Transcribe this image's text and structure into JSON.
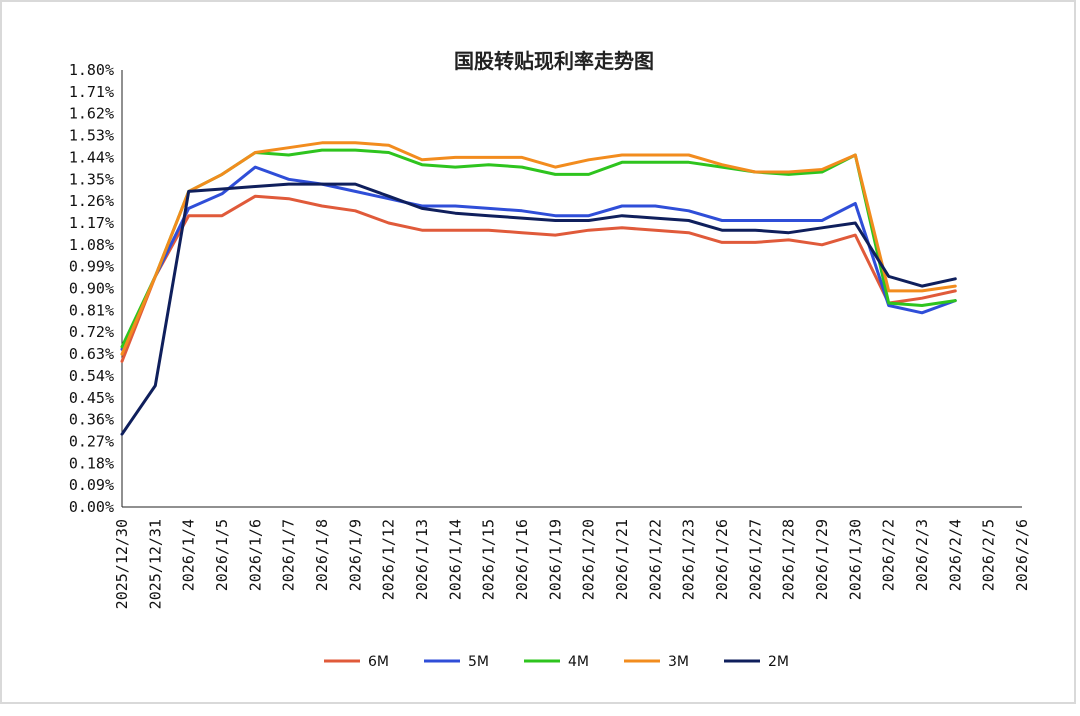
{
  "chart_data": {
    "type": "line",
    "title": "国股转贴现利率走势图",
    "xlabel": "",
    "ylabel": "",
    "ylim": [
      0,
      1.8
    ],
    "y_ticks": [
      "0.00%",
      "0.09%",
      "0.18%",
      "0.27%",
      "0.36%",
      "0.45%",
      "0.54%",
      "0.63%",
      "0.72%",
      "0.81%",
      "0.90%",
      "0.99%",
      "1.08%",
      "1.17%",
      "1.26%",
      "1.35%",
      "1.44%",
      "1.53%",
      "1.62%",
      "1.71%",
      "1.80%"
    ],
    "categories": [
      "2025/12/30",
      "2025/12/31",
      "2026/1/4",
      "2026/1/5",
      "2026/1/6",
      "2026/1/7",
      "2026/1/8",
      "2026/1/9",
      "2026/1/12",
      "2026/1/13",
      "2026/1/14",
      "2026/1/15",
      "2026/1/16",
      "2026/1/19",
      "2026/1/20",
      "2026/1/21",
      "2026/1/22",
      "2026/1/23",
      "2026/1/26",
      "2026/1/27",
      "2026/1/28",
      "2026/1/29",
      "2026/1/30",
      "2026/2/2",
      "2026/2/3",
      "2026/2/4",
      "2026/2/5",
      "2026/2/6"
    ],
    "grid": false,
    "legend_position": "bottom",
    "series": [
      {
        "name": "6M",
        "color": "#e05a3a",
        "values": [
          0.6,
          0.95,
          1.2,
          1.2,
          1.28,
          1.27,
          1.24,
          1.22,
          1.17,
          1.14,
          1.14,
          1.14,
          1.13,
          1.12,
          1.14,
          1.15,
          1.14,
          1.13,
          1.09,
          1.09,
          1.1,
          1.08,
          1.12,
          0.84,
          0.86,
          0.89,
          null,
          null
        ]
      },
      {
        "name": "5M",
        "color": "#2f4ed8",
        "values": [
          0.65,
          0.95,
          1.23,
          1.29,
          1.4,
          1.35,
          1.33,
          1.3,
          1.27,
          1.24,
          1.24,
          1.23,
          1.22,
          1.2,
          1.2,
          1.24,
          1.24,
          1.22,
          1.18,
          1.18,
          1.18,
          1.18,
          1.25,
          0.83,
          0.8,
          0.85,
          null,
          null
        ]
      },
      {
        "name": "4M",
        "color": "#2ec41e",
        "values": [
          0.66,
          0.95,
          1.3,
          1.37,
          1.46,
          1.45,
          1.47,
          1.47,
          1.46,
          1.41,
          1.4,
          1.41,
          1.4,
          1.37,
          1.37,
          1.42,
          1.42,
          1.42,
          1.4,
          1.38,
          1.37,
          1.38,
          1.45,
          0.84,
          0.83,
          0.85,
          null,
          null
        ]
      },
      {
        "name": "3M",
        "color": "#f28c1e",
        "values": [
          0.63,
          0.95,
          1.3,
          1.37,
          1.46,
          1.48,
          1.5,
          1.5,
          1.49,
          1.43,
          1.44,
          1.44,
          1.44,
          1.4,
          1.43,
          1.45,
          1.45,
          1.45,
          1.41,
          1.38,
          1.38,
          1.39,
          1.45,
          0.89,
          0.89,
          0.91,
          null,
          null
        ]
      },
      {
        "name": "2M",
        "color": "#0f1f5c",
        "values": [
          0.3,
          0.5,
          1.3,
          1.31,
          1.32,
          1.33,
          1.33,
          1.33,
          1.28,
          1.23,
          1.21,
          1.2,
          1.19,
          1.18,
          1.18,
          1.2,
          1.19,
          1.18,
          1.14,
          1.14,
          1.13,
          1.15,
          1.17,
          0.95,
          0.91,
          0.94,
          null,
          null
        ]
      }
    ]
  }
}
